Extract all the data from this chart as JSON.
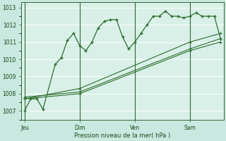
{
  "background_color": "#c8e8e0",
  "plot_bg_color": "#d8f0e8",
  "grid_color": "#ffffff",
  "line_color": "#2d6e2d",
  "ylabel": "Pression niveau de la mer( hPa )",
  "ylim": [
    1006.5,
    1013.3
  ],
  "yticks": [
    1007,
    1008,
    1009,
    1010,
    1011,
    1012,
    1013
  ],
  "xtick_labels": [
    "Jeu",
    "Dim",
    "Ven",
    "Sam"
  ],
  "xtick_positions": [
    0,
    9,
    18,
    27
  ],
  "vline_positions": [
    0,
    9,
    18,
    27
  ],
  "total_points": 33,
  "series1_x": [
    0,
    1,
    2,
    3,
    5,
    6,
    7,
    8,
    9,
    10,
    11,
    12,
    13,
    14,
    15,
    16,
    17,
    18,
    19,
    20,
    21,
    22,
    23,
    24,
    25,
    26,
    27,
    28,
    29,
    30,
    31,
    32
  ],
  "series1_y": [
    1007.0,
    1007.7,
    1007.7,
    1007.1,
    1009.7,
    1010.1,
    1011.1,
    1011.5,
    1010.8,
    1010.5,
    1011.0,
    1011.8,
    1012.2,
    1012.3,
    1012.3,
    1011.3,
    1010.6,
    1011.0,
    1011.5,
    1012.0,
    1012.5,
    1012.5,
    1012.8,
    1012.5,
    1012.5,
    1012.4,
    1012.5,
    1012.7,
    1012.5,
    1012.5,
    1012.5,
    1011.2
  ],
  "series2_x": [
    0,
    9,
    27,
    32
  ],
  "series2_y": [
    1007.7,
    1008.3,
    1011.0,
    1011.5
  ],
  "series3_x": [
    0,
    9,
    27,
    32
  ],
  "series3_y": [
    1007.7,
    1008.0,
    1010.5,
    1011.0
  ],
  "series4_x": [
    0,
    9,
    27,
    32
  ],
  "series4_y": [
    1007.8,
    1008.1,
    1010.6,
    1011.2
  ]
}
